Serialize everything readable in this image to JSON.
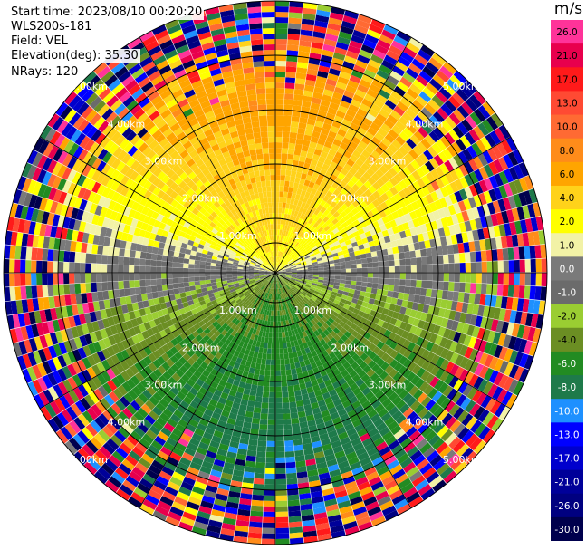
{
  "header": {
    "start_time": "Start time: 2023/08/10 00:20:20",
    "instrument": "WLS200s-181",
    "field": "Field: VEL",
    "elevation": "Elevation(deg): 35.30",
    "nrays": "NRays: 120"
  },
  "colorbar": {
    "unit": "m/s",
    "ticks": [
      "26.0",
      "21.0",
      "17.0",
      "13.0",
      "10.0",
      "8.0",
      "6.0",
      "4.0",
      "2.0",
      "1.0",
      "0.0",
      "-1.0",
      "-2.0",
      "-4.0",
      "-6.0",
      "-8.0",
      "-10.0",
      "-13.0",
      "-17.0",
      "-21.0",
      "-26.0",
      "-30.0"
    ],
    "colors": [
      "#ff3399",
      "#e8004d",
      "#ff1a1a",
      "#ff4a33",
      "#ff6a33",
      "#ff8c1a",
      "#ffa500",
      "#ffd21a",
      "#ffff00",
      "#f2f2a6",
      "#7a7a7a",
      "#6b6b6b",
      "#9acd32",
      "#6b8e23",
      "#228b22",
      "#1e7a4a",
      "#1e90ff",
      "#0000ff",
      "#0000cd",
      "#000099",
      "#000080",
      "#00004d"
    ]
  },
  "chart_data": {
    "type": "ppi",
    "field": "VEL",
    "units": "m/s",
    "nrays": 120,
    "elevation_deg": 35.3,
    "range_km": [
      0,
      5.0
    ],
    "range_rings_km": [
      1.0,
      2.0,
      3.0,
      4.0,
      5.0
    ],
    "ring_labels": [
      "1.00km",
      "2.00km",
      "3.00km",
      "4.00km",
      "5.00km"
    ],
    "azimuth_lines_deg": [
      0,
      30,
      60,
      90,
      120,
      150,
      180,
      210,
      240,
      270,
      300,
      330
    ],
    "velocity_pattern": {
      "north_sector": "positive (0 to 8 m/s, yellow/orange)",
      "south_sector": "negative (-1 to -6 m/s, green)",
      "east_west_axis": "near zero (grey)",
      "outer_ranges": "noisy, full color range"
    },
    "color_bounds": [
      -30,
      -26,
      -21,
      -17,
      -13,
      -10,
      -8,
      -6,
      -4,
      -2,
      -1,
      0,
      1,
      2,
      4,
      6,
      8,
      10,
      13,
      17,
      21,
      26
    ]
  }
}
